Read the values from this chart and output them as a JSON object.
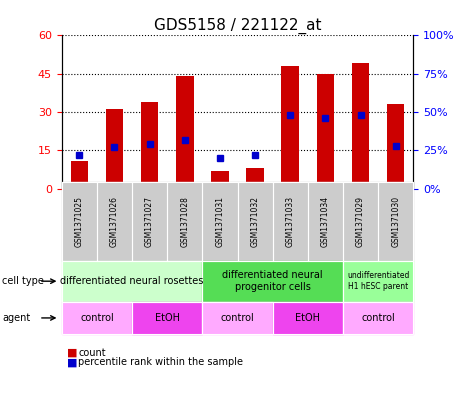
{
  "title": "GDS5158 / 221122_at",
  "samples": [
    "GSM1371025",
    "GSM1371026",
    "GSM1371027",
    "GSM1371028",
    "GSM1371031",
    "GSM1371032",
    "GSM1371033",
    "GSM1371034",
    "GSM1371029",
    "GSM1371030"
  ],
  "counts": [
    11,
    31,
    34,
    44,
    7,
    8,
    48,
    45,
    49,
    33
  ],
  "percentile_ranks": [
    22,
    27,
    29,
    32,
    20,
    22,
    48,
    46,
    48,
    28
  ],
  "ylim_left": [
    0,
    60
  ],
  "ylim_right": [
    0,
    100
  ],
  "yticks_left": [
    0,
    15,
    30,
    45,
    60
  ],
  "yticks_right": [
    0,
    25,
    50,
    75,
    100
  ],
  "ytick_labels_left": [
    "0",
    "15",
    "30",
    "45",
    "60"
  ],
  "ytick_labels_right": [
    "0%",
    "25%",
    "50%",
    "75%",
    "100%"
  ],
  "bar_color": "#cc0000",
  "blue_color": "#0000cc",
  "cell_type_groups": [
    {
      "label": "differentiated neural rosettes",
      "start": 0,
      "end": 3,
      "color": "#ccffcc"
    },
    {
      "label": "differentiated neural\nprogenitor cells",
      "start": 4,
      "end": 7,
      "color": "#55dd55"
    },
    {
      "label": "undifferentiated\nH1 hESC parent",
      "start": 8,
      "end": 9,
      "color": "#99ff99"
    }
  ],
  "agent_groups": [
    {
      "label": "control",
      "start": 0,
      "end": 1,
      "color": "#ffaaff"
    },
    {
      "label": "EtOH",
      "start": 2,
      "end": 3,
      "color": "#ee44ee"
    },
    {
      "label": "control",
      "start": 4,
      "end": 5,
      "color": "#ffaaff"
    },
    {
      "label": "EtOH",
      "start": 6,
      "end": 7,
      "color": "#ee44ee"
    },
    {
      "label": "control",
      "start": 8,
      "end": 9,
      "color": "#ffaaff"
    }
  ],
  "cell_type_label": "cell type",
  "agent_label": "agent",
  "legend_count_label": "count",
  "legend_percentile_label": "percentile rank within the sample",
  "background_color": "#ffffff",
  "sample_bg_color": "#cccccc"
}
